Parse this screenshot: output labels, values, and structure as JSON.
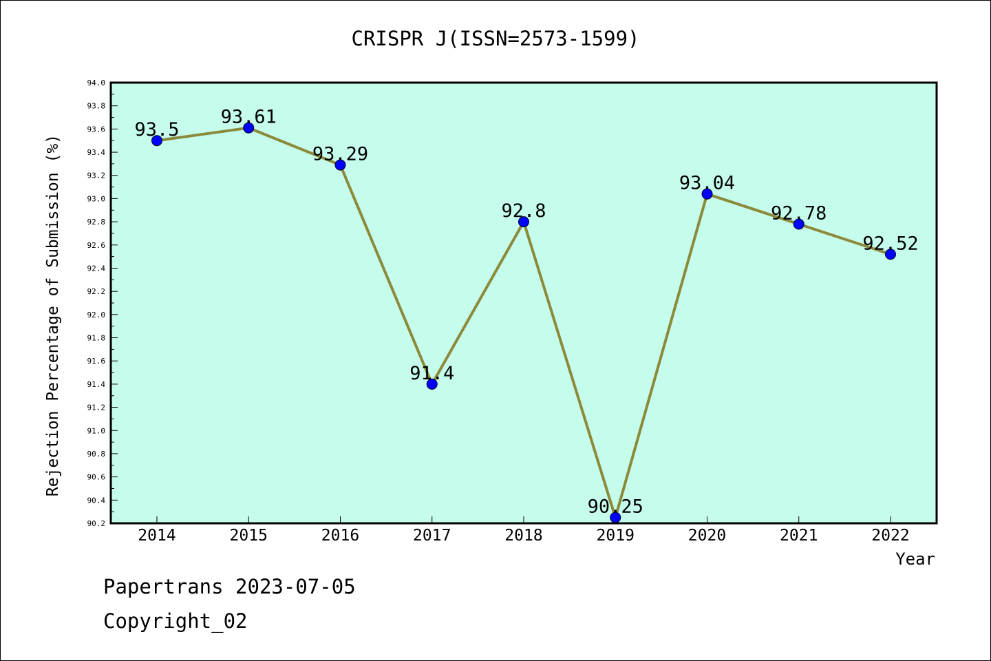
{
  "chart_data": {
    "type": "line",
    "title": "CRISPR J(ISSN=2573-1599)",
    "xlabel": "Year",
    "ylabel": "Rejection Percentage of Submission (%)",
    "categories": [
      "2014",
      "2015",
      "2016",
      "2017",
      "2018",
      "2019",
      "2020",
      "2021",
      "2022"
    ],
    "series": [
      {
        "values": [
          93.5,
          93.61,
          93.29,
          91.4,
          92.8,
          90.25,
          93.04,
          92.78,
          92.52
        ],
        "labels": [
          "93.5",
          "93.61",
          "93.29",
          "91.4",
          "92.8",
          "90.25",
          "93.04",
          "92.78",
          "92.52"
        ]
      }
    ],
    "ylim": [
      90.2,
      94.0
    ],
    "yticks": [
      "90.2",
      "90.4",
      "90.6",
      "90.8",
      "91.0",
      "91.2",
      "91.4",
      "91.6",
      "91.8",
      "92.0",
      "92.2",
      "92.4",
      "92.6",
      "92.8",
      "93.0",
      "93.2",
      "93.4",
      "93.6",
      "93.8",
      "94.0"
    ],
    "grid": false,
    "colors": {
      "plot_background": "#c6fcec",
      "line": "#8b8a3a",
      "marker": "#0000ff"
    }
  },
  "footer": {
    "line1": "Papertrans 2023-07-05",
    "line2": "Copyright_02"
  }
}
